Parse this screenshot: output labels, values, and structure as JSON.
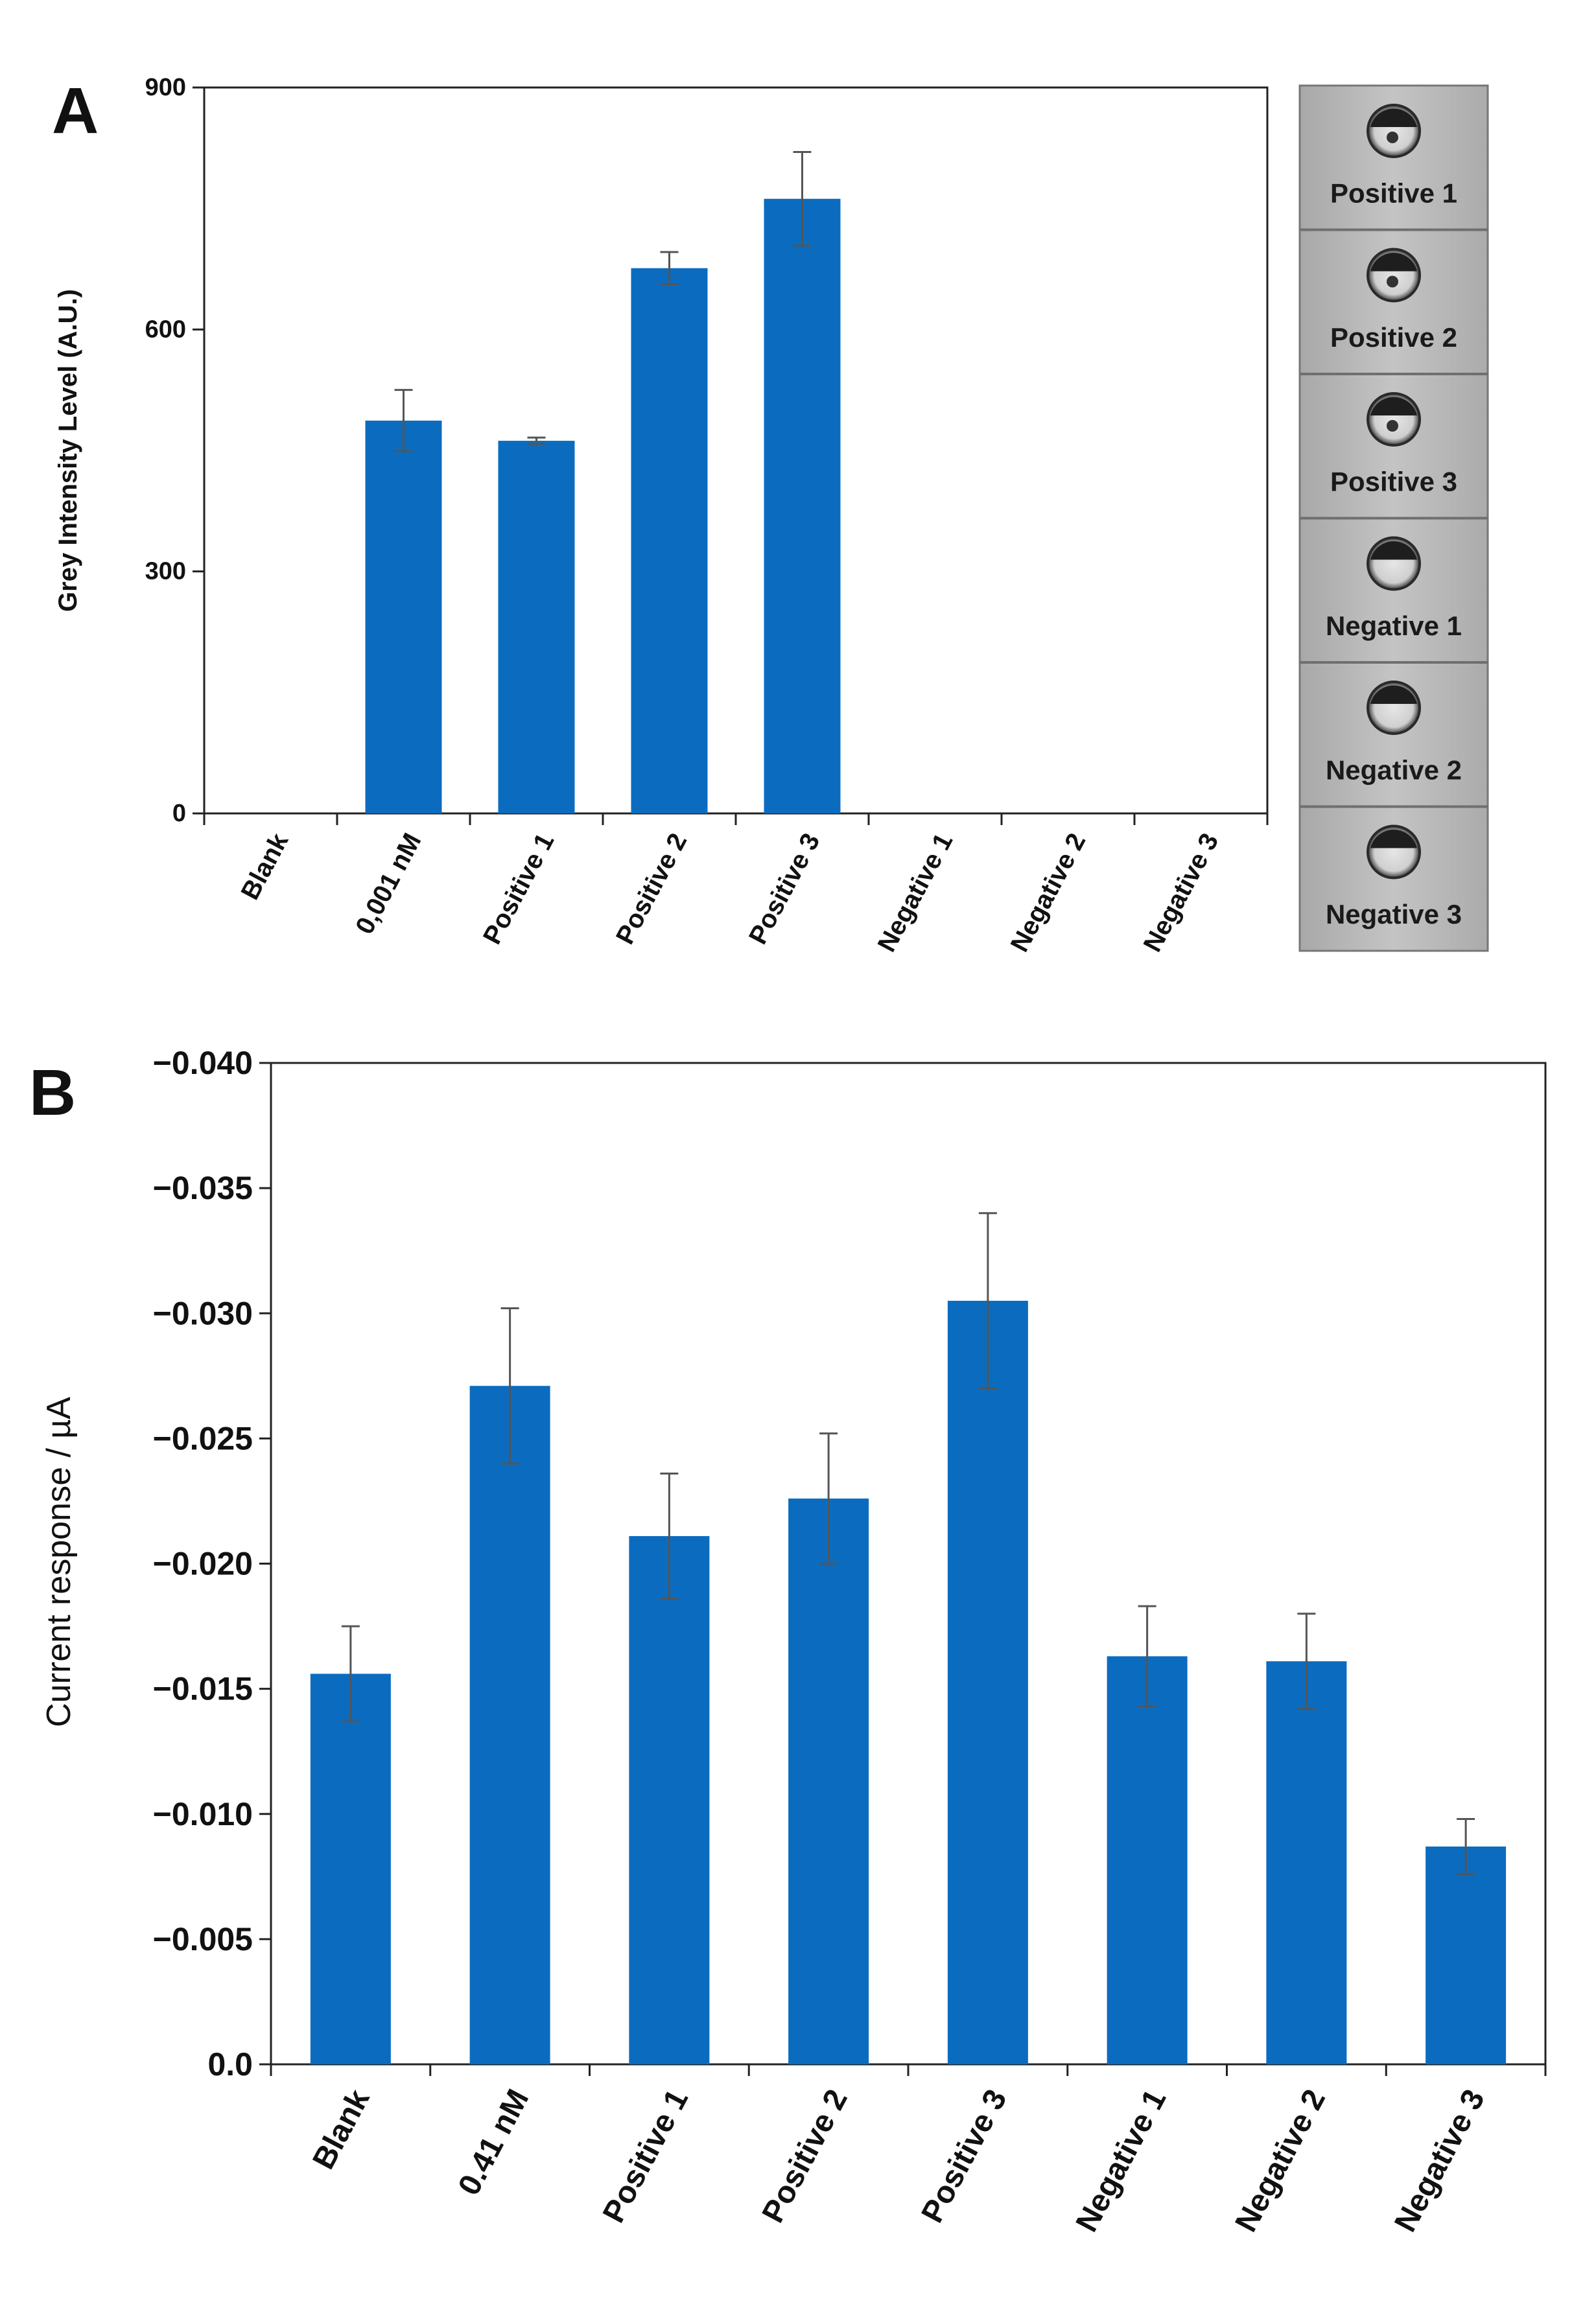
{
  "chart_data": [
    {
      "panel": "A",
      "type": "bar",
      "ylabel": "Grey Intensity Level (A.U.)",
      "xlabel": "",
      "ylim": [
        0,
        900
      ],
      "yticks": [
        "0",
        "300",
        "600",
        "900"
      ],
      "ytick_values": [
        0,
        300,
        600,
        900
      ],
      "categories": [
        "Blank",
        "0,001 nM",
        "Positive 1",
        "Positive 2",
        "Positive 3",
        "Negative 1",
        "Negative 2",
        "Negative 3"
      ],
      "values": [
        0,
        487,
        462,
        676,
        762,
        0,
        0,
        0
      ],
      "errors": [
        0,
        38,
        4,
        20,
        58,
        0,
        0,
        0
      ],
      "bar_color": "#0b6cbf",
      "grid": false
    },
    {
      "panel": "B",
      "type": "bar",
      "ylabel": "Current response / µA",
      "xlabel": "",
      "ylim": [
        0,
        -0.04
      ],
      "yticks": [
        "0.0",
        "−0.005",
        "−0.010",
        "−0.015",
        "−0.020",
        "−0.025",
        "−0.030",
        "−0.035",
        "−0.040"
      ],
      "ytick_values": [
        0,
        -0.005,
        -0.01,
        -0.015,
        -0.02,
        -0.025,
        -0.03,
        -0.035,
        -0.04
      ],
      "categories": [
        "Blank",
        "0.41 nM",
        "Positive 1",
        "Positive 2",
        "Positive 3",
        "Negative 1",
        "Negative 2",
        "Negative 3"
      ],
      "values": [
        -0.0156,
        -0.0271,
        -0.0211,
        -0.0226,
        -0.0305,
        -0.0163,
        -0.0161,
        -0.0087
      ],
      "errors": [
        0.0019,
        0.0031,
        0.0025,
        0.0026,
        0.0035,
        0.002,
        0.0019,
        0.0011
      ],
      "bar_color": "#0b6cbf",
      "grid": false
    }
  ],
  "strip": {
    "labels": [
      "Positive 1",
      "Positive 2",
      "Positive 3",
      "Negative 1",
      "Negative 2",
      "Negative 3"
    ]
  }
}
